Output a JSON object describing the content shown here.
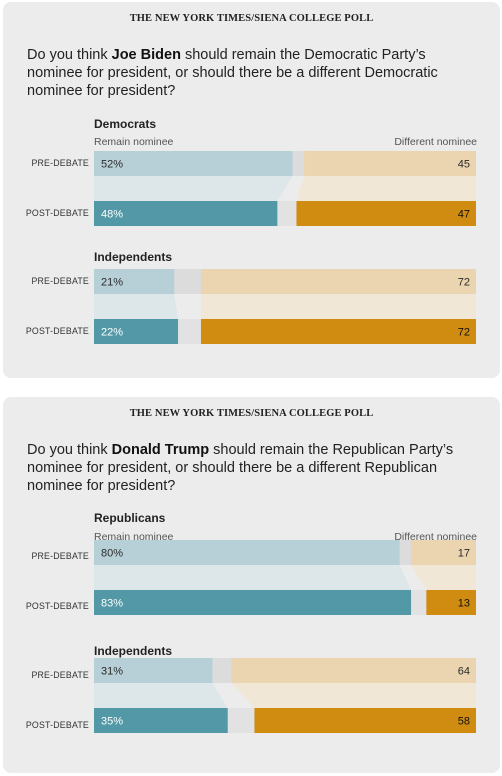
{
  "cards": [
    {
      "source": "THE NEW YORK TIMES/SIENA COLLEGE POLL",
      "question_pre": "Do you think ",
      "question_name": "Joe Biden",
      "question_post": " should remain the Democratic Party’s nominee for president, or should there be a different Democratic nominee for president?",
      "legend_left": "Remain nominee",
      "legend_right": "Different nominee"
    },
    {
      "source": "THE NEW YORK TIMES/SIENA COLLEGE POLL",
      "question_pre": "Do you think ",
      "question_name": "Donald Trump",
      "question_post": " should remain the Republican Party’s nominee for president, or should there be a different Republican nominee for president?",
      "legend_left": "Remain nominee",
      "legend_right": "Different nominee"
    }
  ],
  "colors": {
    "remain_pre": "#b7d0d8",
    "remain_post": "#5298a6",
    "different_pre": "#ead5b0",
    "different_post": "#d08c10",
    "neutral": "#dcdcdc",
    "neutral_post": "#e2e2e2",
    "connector_remain": "#dde6e9",
    "connector_different": "#f1e7d6"
  },
  "chart_data": [
    {
      "type": "bar",
      "stacked": true,
      "max": 100,
      "groups": [
        {
          "name": "Democrats",
          "rows": [
            {
              "label": "PRE-DEBATE",
              "remain": 52,
              "different": 45
            },
            {
              "label": "POST-DEBATE",
              "remain": 48,
              "different": 47
            }
          ]
        },
        {
          "name": "Independents",
          "rows": [
            {
              "label": "PRE-DEBATE",
              "remain": 21,
              "different": 72
            },
            {
              "label": "POST-DEBATE",
              "remain": 22,
              "different": 72
            }
          ]
        }
      ]
    },
    {
      "type": "bar",
      "stacked": true,
      "max": 100,
      "groups": [
        {
          "name": "Republicans",
          "rows": [
            {
              "label": "PRE-DEBATE",
              "remain": 80,
              "different": 17
            },
            {
              "label": "POST-DEBATE",
              "remain": 83,
              "different": 13
            }
          ]
        },
        {
          "name": "Independents",
          "rows": [
            {
              "label": "PRE-DEBATE",
              "remain": 31,
              "different": 64
            },
            {
              "label": "POST-DEBATE",
              "remain": 35,
              "different": 58
            }
          ]
        }
      ]
    }
  ]
}
